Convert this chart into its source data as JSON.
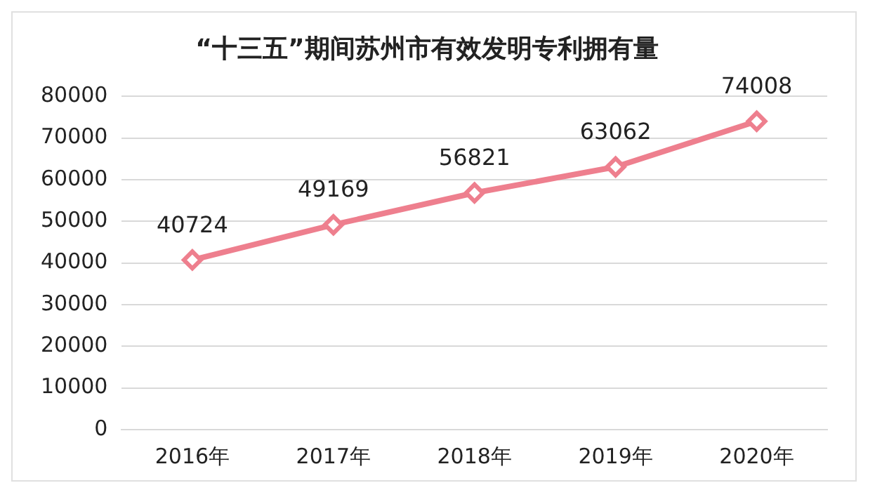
{
  "chart_data": {
    "type": "line",
    "title": "“十三五”期间苏州市有效发明专利拥有量",
    "categories": [
      "2016年",
      "2017年",
      "2018年",
      "2019年",
      "2020年"
    ],
    "values": [
      40724,
      49169,
      56821,
      63062,
      74008
    ],
    "color": "#ee7f8e",
    "ylim": [
      0,
      80000
    ],
    "yticks": [
      0,
      10000,
      20000,
      30000,
      40000,
      50000,
      60000,
      70000,
      80000
    ],
    "grid": "y",
    "marker": "diamond",
    "line_style": "solid",
    "data_labels": true,
    "legend": false
  }
}
